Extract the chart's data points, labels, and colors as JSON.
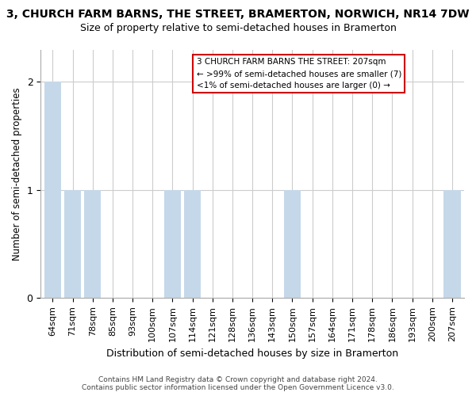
{
  "title": "3, CHURCH FARM BARNS, THE STREET, BRAMERTON, NORWICH, NR14 7DW",
  "subtitle": "Size of property relative to semi-detached houses in Bramerton",
  "xlabel": "Distribution of semi-detached houses by size in Bramerton",
  "ylabel": "Number of semi-detached properties",
  "categories": [
    "64sqm",
    "71sqm",
    "78sqm",
    "85sqm",
    "93sqm",
    "100sqm",
    "107sqm",
    "114sqm",
    "121sqm",
    "128sqm",
    "136sqm",
    "143sqm",
    "150sqm",
    "157sqm",
    "164sqm",
    "171sqm",
    "178sqm",
    "186sqm",
    "193sqm",
    "200sqm",
    "207sqm"
  ],
  "values": [
    2,
    1,
    1,
    0,
    0,
    0,
    1,
    1,
    0,
    0,
    0,
    0,
    1,
    0,
    0,
    0,
    0,
    0,
    0,
    0,
    1
  ],
  "bar_color": "#c5d8ea",
  "annotation_line1": "3 CHURCH FARM BARNS THE STREET: 207sqm",
  "annotation_line2": "← >99% of semi-detached houses are smaller (7)",
  "annotation_line3": "<1% of semi-detached houses are larger (0) →",
  "annotation_box_facecolor": "#ffffff",
  "annotation_box_edgecolor": "#cc0000",
  "footer_text": "Contains HM Land Registry data © Crown copyright and database right 2024.\nContains public sector information licensed under the Open Government Licence v3.0.",
  "ylim": [
    0,
    2.3
  ],
  "yticks": [
    0,
    1,
    2
  ],
  "title_fontsize": 10,
  "subtitle_fontsize": 9,
  "xlabel_fontsize": 9,
  "ylabel_fontsize": 8.5,
  "tick_fontsize": 8,
  "annotation_fontsize": 7.5,
  "footer_fontsize": 6.5,
  "background_color": "#ffffff",
  "grid_color": "#cccccc",
  "spine_color": "#aaaaaa"
}
